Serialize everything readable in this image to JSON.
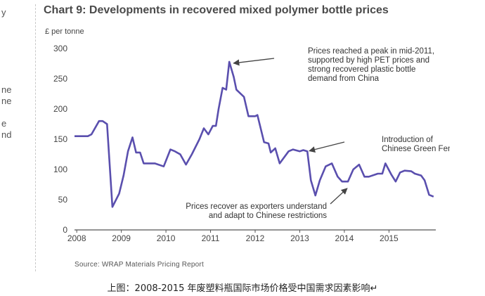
{
  "edge_fragments": [
    "y",
    "ne",
    "ne",
    "e",
    "nd"
  ],
  "chart_data": {
    "type": "line",
    "title": "Chart 9: Developments in recovered mixed polymer bottle prices",
    "ylabel": "£ per tonne",
    "xlabel": "",
    "ylim": [
      0,
      300
    ],
    "yticks": [
      "0",
      "50",
      "100",
      "150",
      "200",
      "250",
      "300"
    ],
    "xticks": [
      "2008",
      "2009",
      "2010",
      "2011",
      "2012",
      "2013",
      "2014",
      "2015"
    ],
    "xlim": [
      2007.95,
      2016.05
    ],
    "color": "#5a4fae",
    "grid": false,
    "series": [
      {
        "x": [
          2007.95,
          2008.25,
          2008.33,
          2008.5,
          2008.58,
          2008.68,
          2008.8,
          2008.95,
          2009.05,
          2009.15,
          2009.25,
          2009.33,
          2009.42,
          2009.5,
          2009.75,
          2009.95,
          2010.1,
          2010.2,
          2010.32,
          2010.45,
          2010.58,
          2010.75,
          2010.85,
          2010.95,
          2011.05,
          2011.12,
          2011.18,
          2011.27,
          2011.35,
          2011.42,
          2011.52,
          2011.58,
          2011.75,
          2011.85,
          2012.0,
          2012.05,
          2012.2,
          2012.3,
          2012.35,
          2012.45,
          2012.55,
          2012.75,
          2012.85,
          2013.0,
          2013.08,
          2013.17,
          2013.25,
          2013.35,
          2013.45,
          2013.58,
          2013.72,
          2013.85,
          2013.95,
          2014.08,
          2014.2,
          2014.33,
          2014.45,
          2014.55,
          2014.75,
          2014.85,
          2014.92,
          2015.05,
          2015.15,
          2015.25,
          2015.35,
          2015.5,
          2015.58,
          2015.72,
          2015.8,
          2015.9,
          2016.0
        ],
        "y": [
          155,
          155,
          158,
          180,
          180,
          175,
          38,
          60,
          90,
          130,
          153,
          128,
          128,
          110,
          110,
          105,
          133,
          130,
          125,
          108,
          125,
          150,
          168,
          158,
          172,
          172,
          200,
          235,
          232,
          278,
          253,
          232,
          220,
          188,
          188,
          190,
          145,
          143,
          128,
          135,
          110,
          130,
          133,
          130,
          132,
          130,
          82,
          57,
          82,
          105,
          110,
          88,
          80,
          80,
          100,
          108,
          88,
          88,
          93,
          93,
          110,
          92,
          80,
          95,
          98,
          97,
          93,
          90,
          82,
          58,
          55
        ]
      }
    ],
    "annotations": [
      {
        "text": [
          "Prices reached a peak in mid-2011,",
          "supported by high PET prices and",
          "strong recovered plastic bottle",
          "demand from China"
        ],
        "point": [
          2011.42,
          278
        ]
      },
      {
        "text": [
          "Introduction of",
          "Chinese Green Fence"
        ],
        "point": [
          2013.15,
          133
        ]
      },
      {
        "text": [
          "Prices recover as exporters understand",
          "and adapt to Chinese restrictions"
        ],
        "point": [
          2014.0,
          78
        ]
      }
    ]
  },
  "source_text": "Source: WRAP Materials Pricing Report",
  "caption": "上图：2008-2015 年废塑料瓶国际市场价格受中国需求因素影响↵"
}
